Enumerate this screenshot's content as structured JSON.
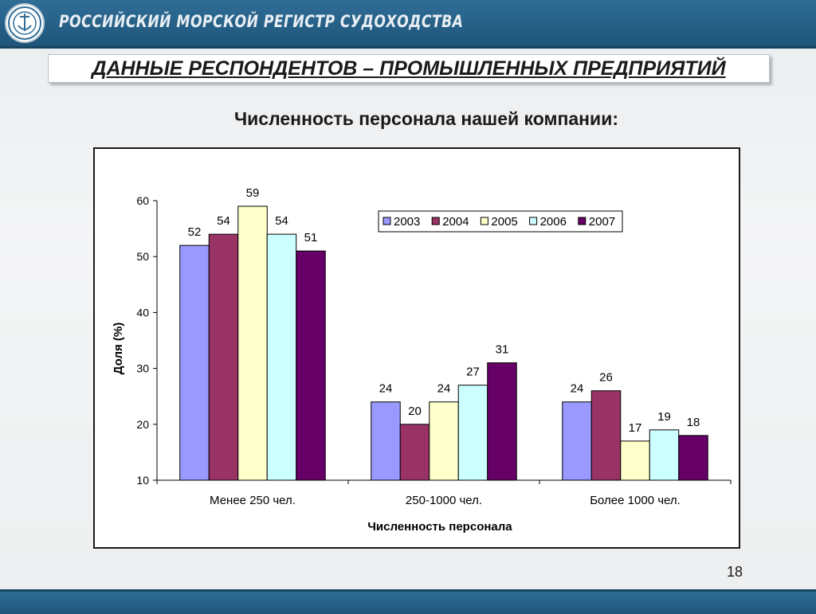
{
  "header": {
    "organization": "РОССИЙСКИЙ МОРСКОЙ РЕГИСТР СУДОХОДСТВА",
    "logo_icon": "register-emblem-icon"
  },
  "slide": {
    "heading": "ДАННЫЕ РЕСПОНДЕНТОВ – ПРОМЫШЛЕННЫХ ПРЕДПРИЯТИЙ",
    "subtitle": "Численность персонала нашей компании:",
    "page_number": "18"
  },
  "chart_data": {
    "type": "bar",
    "categories": [
      "Менее 250 чел.",
      "250-1000 чел.",
      "Более 1000 чел."
    ],
    "series": [
      {
        "name": "2003",
        "color": "#9999ff",
        "values": [
          52,
          24,
          24
        ]
      },
      {
        "name": "2004",
        "color": "#993366",
        "values": [
          54,
          20,
          26
        ]
      },
      {
        "name": "2005",
        "color": "#ffffcc",
        "values": [
          59,
          24,
          17
        ]
      },
      {
        "name": "2006",
        "color": "#ccffff",
        "values": [
          54,
          27,
          19
        ]
      },
      {
        "name": "2007",
        "color": "#660066",
        "values": [
          51,
          31,
          18
        ]
      }
    ],
    "xlabel": "Численность персонала",
    "ylabel": "Доля (%)",
    "ylim": [
      10,
      60
    ],
    "yticks": [
      10,
      20,
      30,
      40,
      50,
      60
    ],
    "grid": false,
    "legend": "top-right"
  }
}
